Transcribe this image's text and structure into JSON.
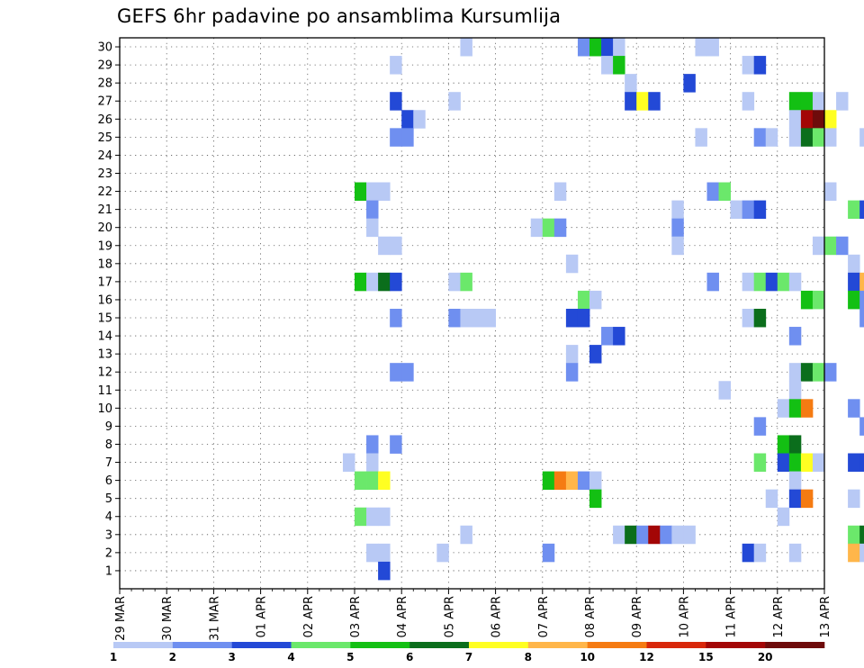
{
  "title": "GEFS 6hr padavine po ansamblima Kursumlija",
  "chart_data": {
    "type": "heatmap",
    "title": "GEFS 6hr padavine po ansamblima Kursumlija",
    "x_tick_labels": [
      "29 MAR",
      "30 MAR",
      "31 MAR",
      "01 APR",
      "02 APR",
      "03 APR",
      "04 APR",
      "05 APR",
      "06 APR",
      "07 APR",
      "08 APR",
      "09 APR",
      "10 APR",
      "11 APR",
      "12 APR",
      "13 APR"
    ],
    "y_tick_labels": [
      "1",
      "2",
      "3",
      "4",
      "5",
      "6",
      "7",
      "8",
      "9",
      "10",
      "11",
      "12",
      "13",
      "14",
      "15",
      "16",
      "17",
      "18",
      "19",
      "20",
      "21",
      "22",
      "23",
      "24",
      "25",
      "26",
      "27",
      "28",
      "29",
      "30"
    ],
    "grid": true,
    "colorbar": {
      "labels": [
        "1",
        "2",
        "3",
        "4",
        "5",
        "6",
        "7",
        "8",
        "10",
        "12",
        "15",
        "20"
      ],
      "colors": [
        "#b8c9f5",
        "#6f8ff0",
        "#2349d6",
        "#6be86b",
        "#13c013",
        "#0b6e1c",
        "#ffff22",
        "#ffb64a",
        "#f57b12",
        "#d8270a",
        "#a30606",
        "#6e0b0b"
      ]
    },
    "cells": [
      {
        "member": 30,
        "day": 7.25,
        "mm": 1
      },
      {
        "member": 30,
        "day": 9.75,
        "mm": 2
      },
      {
        "member": 30,
        "day": 10.0,
        "mm": 5
      },
      {
        "member": 30,
        "day": 10.25,
        "mm": 3
      },
      {
        "member": 30,
        "day": 10.5,
        "mm": 1
      },
      {
        "member": 30,
        "day": 12.25,
        "mm": 1
      },
      {
        "member": 30,
        "day": 12.5,
        "mm": 1
      },
      {
        "member": 29,
        "day": 5.75,
        "mm": 1
      },
      {
        "member": 29,
        "day": 10.25,
        "mm": 1
      },
      {
        "member": 29,
        "day": 10.5,
        "mm": 5
      },
      {
        "member": 29,
        "day": 13.25,
        "mm": 1
      },
      {
        "member": 29,
        "day": 13.5,
        "mm": 3
      },
      {
        "member": 28,
        "day": 10.75,
        "mm": 1
      },
      {
        "member": 28,
        "day": 12.0,
        "mm": 3
      },
      {
        "member": 27,
        "day": 5.75,
        "mm": 3
      },
      {
        "member": 27,
        "day": 7.0,
        "mm": 1
      },
      {
        "member": 27,
        "day": 10.75,
        "mm": 3
      },
      {
        "member": 27,
        "day": 11.0,
        "mm": 7
      },
      {
        "member": 27,
        "day": 11.25,
        "mm": 3
      },
      {
        "member": 27,
        "day": 13.25,
        "mm": 1
      },
      {
        "member": 27,
        "day": 14.25,
        "mm": 5
      },
      {
        "member": 27,
        "day": 14.5,
        "mm": 5
      },
      {
        "member": 27,
        "day": 14.75,
        "mm": 1
      },
      {
        "member": 27,
        "day": 15.25,
        "mm": 1
      },
      {
        "member": 26,
        "day": 6.0,
        "mm": 3
      },
      {
        "member": 26,
        "day": 6.25,
        "mm": 1
      },
      {
        "member": 26,
        "day": 14.25,
        "mm": 1
      },
      {
        "member": 26,
        "day": 14.5,
        "mm": 15
      },
      {
        "member": 26,
        "day": 14.75,
        "mm": 20
      },
      {
        "member": 26,
        "day": 15.0,
        "mm": 7
      },
      {
        "member": 25,
        "day": 5.75,
        "mm": 2
      },
      {
        "member": 25,
        "day": 6.0,
        "mm": 2
      },
      {
        "member": 25,
        "day": 12.25,
        "mm": 1
      },
      {
        "member": 25,
        "day": 13.5,
        "mm": 2
      },
      {
        "member": 25,
        "day": 13.75,
        "mm": 1
      },
      {
        "member": 25,
        "day": 14.25,
        "mm": 1
      },
      {
        "member": 25,
        "day": 14.5,
        "mm": 6
      },
      {
        "member": 25,
        "day": 14.75,
        "mm": 4
      },
      {
        "member": 25,
        "day": 15.0,
        "mm": 1
      },
      {
        "member": 25,
        "day": 15.75,
        "mm": 1
      },
      {
        "member": 22,
        "day": 5.0,
        "mm": 5
      },
      {
        "member": 22,
        "day": 5.25,
        "mm": 1
      },
      {
        "member": 22,
        "day": 5.5,
        "mm": 1
      },
      {
        "member": 22,
        "day": 9.25,
        "mm": 1
      },
      {
        "member": 22,
        "day": 12.5,
        "mm": 2
      },
      {
        "member": 22,
        "day": 12.75,
        "mm": 4
      },
      {
        "member": 22,
        "day": 15.0,
        "mm": 1
      },
      {
        "member": 21,
        "day": 5.25,
        "mm": 2
      },
      {
        "member": 21,
        "day": 11.75,
        "mm": 1
      },
      {
        "member": 21,
        "day": 13.0,
        "mm": 1
      },
      {
        "member": 21,
        "day": 13.25,
        "mm": 2
      },
      {
        "member": 21,
        "day": 13.5,
        "mm": 3
      },
      {
        "member": 21,
        "day": 15.5,
        "mm": 4
      },
      {
        "member": 21,
        "day": 15.75,
        "mm": 3
      },
      {
        "member": 20,
        "day": 5.25,
        "mm": 1
      },
      {
        "member": 20,
        "day": 8.75,
        "mm": 1
      },
      {
        "member": 20,
        "day": 9.0,
        "mm": 4
      },
      {
        "member": 20,
        "day": 9.25,
        "mm": 2
      },
      {
        "member": 20,
        "day": 11.75,
        "mm": 2
      },
      {
        "member": 19,
        "day": 5.5,
        "mm": 1
      },
      {
        "member": 19,
        "day": 5.75,
        "mm": 1
      },
      {
        "member": 19,
        "day": 11.75,
        "mm": 1
      },
      {
        "member": 19,
        "day": 14.75,
        "mm": 1
      },
      {
        "member": 19,
        "day": 15.0,
        "mm": 4
      },
      {
        "member": 19,
        "day": 15.25,
        "mm": 2
      },
      {
        "member": 18,
        "day": 9.5,
        "mm": 1
      },
      {
        "member": 18,
        "day": 15.5,
        "mm": 1
      },
      {
        "member": 17,
        "day": 5.0,
        "mm": 5
      },
      {
        "member": 17,
        "day": 5.25,
        "mm": 1
      },
      {
        "member": 17,
        "day": 5.5,
        "mm": 6
      },
      {
        "member": 17,
        "day": 5.75,
        "mm": 3
      },
      {
        "member": 17,
        "day": 7.0,
        "mm": 1
      },
      {
        "member": 17,
        "day": 7.25,
        "mm": 4
      },
      {
        "member": 17,
        "day": 12.5,
        "mm": 2
      },
      {
        "member": 17,
        "day": 13.25,
        "mm": 1
      },
      {
        "member": 17,
        "day": 13.5,
        "mm": 4
      },
      {
        "member": 17,
        "day": 13.75,
        "mm": 3
      },
      {
        "member": 17,
        "day": 14.0,
        "mm": 4
      },
      {
        "member": 17,
        "day": 14.25,
        "mm": 1
      },
      {
        "member": 17,
        "day": 15.5,
        "mm": 3
      },
      {
        "member": 17,
        "day": 15.75,
        "mm": 8
      },
      {
        "member": 16,
        "day": 9.75,
        "mm": 4
      },
      {
        "member": 16,
        "day": 10.0,
        "mm": 1
      },
      {
        "member": 16,
        "day": 14.5,
        "mm": 5
      },
      {
        "member": 16,
        "day": 14.75,
        "mm": 4
      },
      {
        "member": 16,
        "day": 15.5,
        "mm": 5
      },
      {
        "member": 16,
        "day": 15.75,
        "mm": 2
      },
      {
        "member": 15,
        "day": 5.75,
        "mm": 2
      },
      {
        "member": 15,
        "day": 7.0,
        "mm": 2
      },
      {
        "member": 15,
        "day": 7.25,
        "mm": 1
      },
      {
        "member": 15,
        "day": 7.5,
        "mm": 1
      },
      {
        "member": 15,
        "day": 7.75,
        "mm": 1
      },
      {
        "member": 15,
        "day": 9.5,
        "mm": 3
      },
      {
        "member": 15,
        "day": 9.75,
        "mm": 3
      },
      {
        "member": 15,
        "day": 13.25,
        "mm": 1
      },
      {
        "member": 15,
        "day": 13.5,
        "mm": 6
      },
      {
        "member": 15,
        "day": 15.75,
        "mm": 2
      },
      {
        "member": 14,
        "day": 10.25,
        "mm": 2
      },
      {
        "member": 14,
        "day": 10.5,
        "mm": 3
      },
      {
        "member": 14,
        "day": 14.25,
        "mm": 2
      },
      {
        "member": 13,
        "day": 9.5,
        "mm": 1
      },
      {
        "member": 13,
        "day": 10.0,
        "mm": 3
      },
      {
        "member": 12,
        "day": 5.75,
        "mm": 2
      },
      {
        "member": 12,
        "day": 6.0,
        "mm": 2
      },
      {
        "member": 12,
        "day": 9.5,
        "mm": 2
      },
      {
        "member": 12,
        "day": 14.25,
        "mm": 1
      },
      {
        "member": 12,
        "day": 14.5,
        "mm": 6
      },
      {
        "member": 12,
        "day": 14.75,
        "mm": 4
      },
      {
        "member": 12,
        "day": 15.0,
        "mm": 2
      },
      {
        "member": 11,
        "day": 12.75,
        "mm": 1
      },
      {
        "member": 11,
        "day": 14.25,
        "mm": 1
      },
      {
        "member": 10,
        "day": 14.0,
        "mm": 1
      },
      {
        "member": 10,
        "day": 14.25,
        "mm": 5
      },
      {
        "member": 10,
        "day": 14.5,
        "mm": 10
      },
      {
        "member": 10,
        "day": 15.5,
        "mm": 2
      },
      {
        "member": 9,
        "day": 13.5,
        "mm": 2
      },
      {
        "member": 9,
        "day": 15.75,
        "mm": 2
      },
      {
        "member": 8,
        "day": 5.25,
        "mm": 2
      },
      {
        "member": 8,
        "day": 5.75,
        "mm": 2
      },
      {
        "member": 8,
        "day": 14.0,
        "mm": 5
      },
      {
        "member": 8,
        "day": 14.25,
        "mm": 6
      },
      {
        "member": 7,
        "day": 4.75,
        "mm": 1
      },
      {
        "member": 7,
        "day": 5.25,
        "mm": 1
      },
      {
        "member": 7,
        "day": 13.5,
        "mm": 4
      },
      {
        "member": 7,
        "day": 14.0,
        "mm": 3
      },
      {
        "member": 7,
        "day": 14.25,
        "mm": 5
      },
      {
        "member": 7,
        "day": 14.5,
        "mm": 7
      },
      {
        "member": 7,
        "day": 14.75,
        "mm": 1
      },
      {
        "member": 7,
        "day": 15.5,
        "mm": 3
      },
      {
        "member": 7,
        "day": 15.75,
        "mm": 3
      },
      {
        "member": 6,
        "day": 5.0,
        "mm": 4
      },
      {
        "member": 6,
        "day": 5.25,
        "mm": 4
      },
      {
        "member": 6,
        "day": 5.5,
        "mm": 7
      },
      {
        "member": 6,
        "day": 9.0,
        "mm": 5
      },
      {
        "member": 6,
        "day": 9.25,
        "mm": 10
      },
      {
        "member": 6,
        "day": 9.5,
        "mm": 8
      },
      {
        "member": 6,
        "day": 9.75,
        "mm": 2
      },
      {
        "member": 6,
        "day": 10.0,
        "mm": 1
      },
      {
        "member": 6,
        "day": 14.25,
        "mm": 1
      },
      {
        "member": 5,
        "day": 10.0,
        "mm": 5
      },
      {
        "member": 5,
        "day": 13.75,
        "mm": 1
      },
      {
        "member": 5,
        "day": 14.25,
        "mm": 3
      },
      {
        "member": 5,
        "day": 14.5,
        "mm": 10
      },
      {
        "member": 5,
        "day": 15.5,
        "mm": 1
      },
      {
        "member": 4,
        "day": 5.0,
        "mm": 4
      },
      {
        "member": 4,
        "day": 5.25,
        "mm": 1
      },
      {
        "member": 4,
        "day": 5.5,
        "mm": 1
      },
      {
        "member": 4,
        "day": 14.0,
        "mm": 1
      },
      {
        "member": 3,
        "day": 7.25,
        "mm": 1
      },
      {
        "member": 3,
        "day": 10.5,
        "mm": 1
      },
      {
        "member": 3,
        "day": 10.75,
        "mm": 6
      },
      {
        "member": 3,
        "day": 11.0,
        "mm": 2
      },
      {
        "member": 3,
        "day": 11.25,
        "mm": 15
      },
      {
        "member": 3,
        "day": 11.5,
        "mm": 2
      },
      {
        "member": 3,
        "day": 11.75,
        "mm": 1
      },
      {
        "member": 3,
        "day": 12.0,
        "mm": 1
      },
      {
        "member": 3,
        "day": 15.5,
        "mm": 4
      },
      {
        "member": 3,
        "day": 15.75,
        "mm": 6
      },
      {
        "member": 2,
        "day": 5.25,
        "mm": 1
      },
      {
        "member": 2,
        "day": 5.5,
        "mm": 1
      },
      {
        "member": 2,
        "day": 6.75,
        "mm": 1
      },
      {
        "member": 2,
        "day": 9.0,
        "mm": 2
      },
      {
        "member": 2,
        "day": 13.25,
        "mm": 3
      },
      {
        "member": 2,
        "day": 13.5,
        "mm": 1
      },
      {
        "member": 2,
        "day": 14.25,
        "mm": 1
      },
      {
        "member": 2,
        "day": 15.5,
        "mm": 8
      },
      {
        "member": 2,
        "day": 15.75,
        "mm": 1
      },
      {
        "member": 1,
        "day": 5.5,
        "mm": 3
      }
    ]
  }
}
